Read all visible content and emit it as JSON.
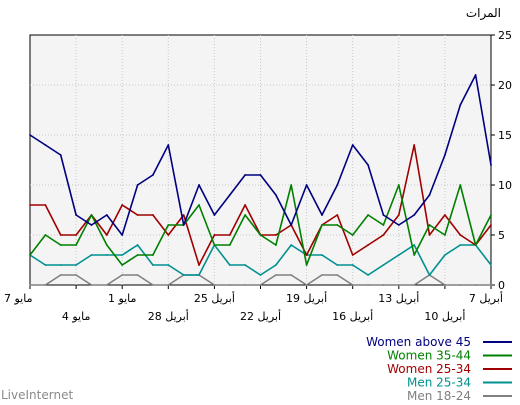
{
  "chart_data": {
    "type": "line",
    "ylabel": "المرات",
    "ylim": [
      0,
      25
    ],
    "yticks": [
      0,
      5,
      10,
      15,
      20,
      25
    ],
    "grid": true,
    "legend_position": "bottom-right",
    "x_tick_labels": [
      {
        "label": "7 مايو",
        "index": 0,
        "row": 1
      },
      {
        "label": "4 مايو",
        "index": 3,
        "row": 2
      },
      {
        "label": "1 مايو",
        "index": 6,
        "row": 1
      },
      {
        "label": "28 أبريل",
        "index": 9,
        "row": 2
      },
      {
        "label": "25 أبريل",
        "index": 12,
        "row": 1
      },
      {
        "label": "22 أبريل",
        "index": 15,
        "row": 2
      },
      {
        "label": "19 أبريل",
        "index": 18,
        "row": 1
      },
      {
        "label": "16 أبريل",
        "index": 21,
        "row": 2
      },
      {
        "label": "13 أبريل",
        "index": 24,
        "row": 1
      },
      {
        "label": "10 أبريل",
        "index": 27,
        "row": 2
      },
      {
        "label": "7 أبريل",
        "index": 30,
        "row": 1
      }
    ],
    "series": [
      {
        "name": "Women above 45",
        "color": "#000080",
        "values": [
          15,
          14,
          13,
          7,
          6,
          7,
          5,
          10,
          11,
          14,
          6,
          10,
          7,
          9,
          11,
          11,
          9,
          6,
          10,
          7,
          10,
          14,
          12,
          7,
          6,
          7,
          9,
          13,
          18,
          21,
          12
        ]
      },
      {
        "name": "Women 35-44",
        "color": "#008000",
        "values": [
          3,
          5,
          4,
          4,
          7,
          4,
          2,
          3,
          3,
          6,
          6,
          8,
          4,
          4,
          7,
          5,
          4,
          10,
          2,
          6,
          6,
          5,
          7,
          6,
          10,
          3,
          6,
          5,
          10,
          4,
          7
        ]
      },
      {
        "name": "Women 25-34",
        "color": "#a00000",
        "values": [
          8,
          8,
          5,
          5,
          7,
          5,
          8,
          7,
          7,
          5,
          7,
          2,
          5,
          5,
          8,
          5,
          5,
          6,
          3,
          6,
          7,
          3,
          4,
          5,
          7,
          14,
          5,
          7,
          5,
          4,
          6
        ]
      },
      {
        "name": "Men 25-34",
        "color": "#009090",
        "values": [
          3,
          2,
          2,
          2,
          3,
          3,
          3,
          4,
          2,
          2,
          1,
          1,
          4,
          2,
          2,
          1,
          2,
          4,
          3,
          3,
          2,
          2,
          1,
          2,
          3,
          4,
          1,
          3,
          4,
          4,
          2
        ]
      },
      {
        "name": "Men 18-24",
        "color": "#808080",
        "values": [
          0,
          0,
          1,
          1,
          0,
          0,
          1,
          1,
          0,
          0,
          1,
          1,
          0,
          0,
          0,
          0,
          1,
          1,
          0,
          1,
          1,
          0,
          0,
          0,
          0,
          0,
          1,
          0,
          0,
          0,
          0
        ]
      }
    ]
  },
  "footer": {
    "brand": "LiveInternet"
  }
}
